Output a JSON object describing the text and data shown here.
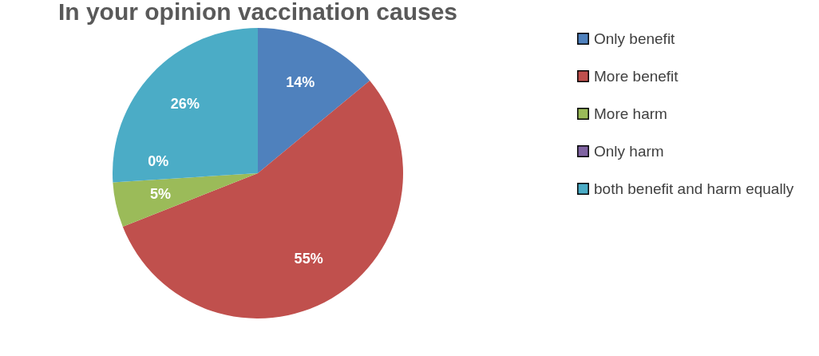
{
  "chart_data": {
    "type": "pie",
    "title": "In your opinion vaccination causes",
    "categories": [
      "Only benefit",
      "More benefit",
      "More harm",
      "Only harm",
      "both benefit and harm equally"
    ],
    "values": [
      14,
      55,
      5,
      0,
      26
    ],
    "value_labels": [
      "14%",
      "55%",
      "5%",
      "0%",
      "26%"
    ],
    "colors": [
      "#4f81bd",
      "#c0504d",
      "#9bbb59",
      "#8064a2",
      "#4bacc6"
    ],
    "legend": "right"
  }
}
